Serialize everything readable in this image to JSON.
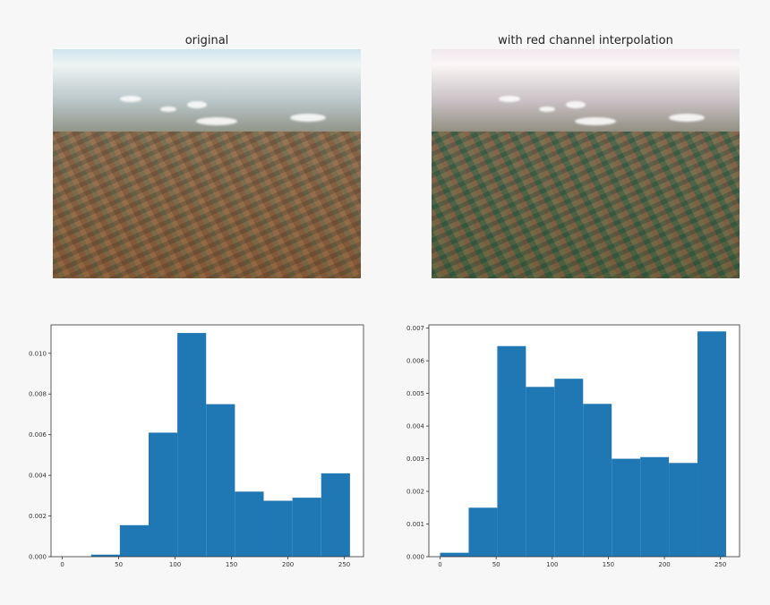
{
  "figure": {
    "titles": [
      "original",
      "with red channel interpolation"
    ]
  },
  "photos": [
    {
      "name": "original-photo",
      "tint": "original",
      "sky_color": "#cfe4ee",
      "land_color": "#7a6548"
    },
    {
      "name": "interpolated-photo",
      "tint": "interpolated",
      "sky_color": "#e6e0e8",
      "land_color": "#5d6a4a"
    }
  ],
  "chart_data": [
    {
      "type": "bar",
      "title": "",
      "bin_edges": [
        0,
        25.5,
        51,
        76.5,
        102,
        127.5,
        153,
        178.5,
        204,
        229.5,
        255
      ],
      "values": [
        0.0,
        0.0001,
        0.00155,
        0.0061,
        0.011,
        0.0075,
        0.0032,
        0.00275,
        0.0029,
        0.0041
      ],
      "xlim": [
        -10,
        267
      ],
      "ylim": [
        0,
        0.0114
      ],
      "xticks": [
        0,
        50,
        100,
        150,
        200,
        250
      ],
      "yticks": [
        0.0,
        0.002,
        0.004,
        0.006,
        0.008,
        0.01
      ],
      "ytick_labels": [
        "0.000",
        "0.002",
        "0.004",
        "0.006",
        "0.008",
        "0.010"
      ],
      "color": "#1f77b4"
    },
    {
      "type": "bar",
      "title": "",
      "bin_edges": [
        0,
        25.5,
        51,
        76.5,
        102,
        127.5,
        153,
        178.5,
        204,
        229.5,
        255
      ],
      "values": [
        0.00012,
        0.0015,
        0.00645,
        0.0052,
        0.00545,
        0.00468,
        0.003,
        0.00305,
        0.00287,
        0.0069
      ],
      "xlim": [
        -10,
        267
      ],
      "ylim": [
        0,
        0.0071
      ],
      "xticks": [
        0,
        50,
        100,
        150,
        200,
        250
      ],
      "yticks": [
        0.0,
        0.001,
        0.002,
        0.003,
        0.004,
        0.005,
        0.006,
        0.007
      ],
      "ytick_labels": [
        "0.000",
        "0.001",
        "0.002",
        "0.003",
        "0.004",
        "0.005",
        "0.006",
        "0.007"
      ],
      "color": "#1f77b4"
    }
  ]
}
